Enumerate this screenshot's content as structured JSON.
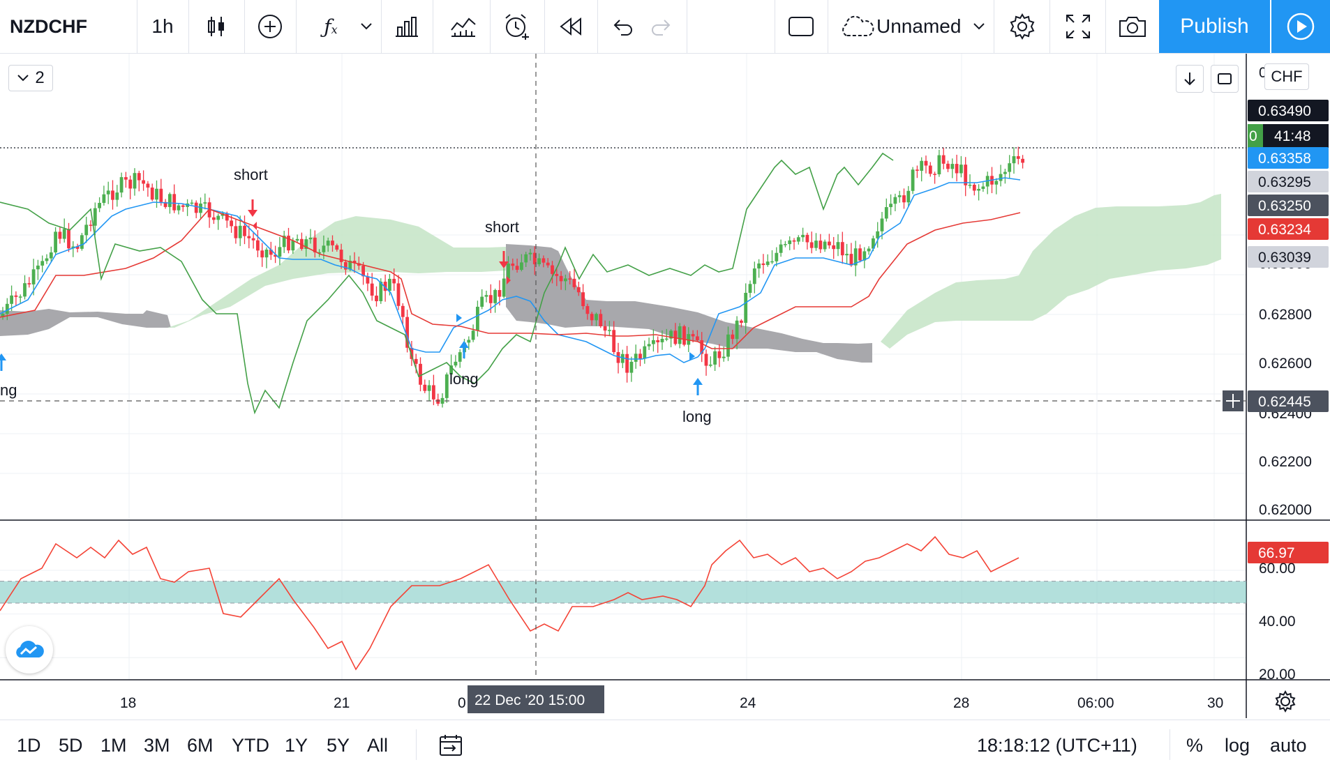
{
  "toolbar": {
    "symbol": "NZDCHF",
    "interval": "1h",
    "layout_name": "Unnamed",
    "publish_label": "Publish"
  },
  "legend": {
    "collapsed_count": "2"
  },
  "currency": "CHF",
  "price_labels": {
    "p1": "0.63490",
    "p2_prefix": "0",
    "countdown": "41:48",
    "p3": "0.63358",
    "p4": "0.63295",
    "p5": "0.63250",
    "p6": "0.63234",
    "p7": "0.63039",
    "crosshair": "0.62445",
    "osc_value": "66.97"
  },
  "price_axis_ticks": [
    "0.62800",
    "0.62600",
    "0.62400",
    "0.62200",
    "0.62000"
  ],
  "osc_axis_ticks": [
    "60.00",
    "40.00",
    "20.00"
  ],
  "time_axis_ticks": [
    "18",
    "21",
    "0",
    "24",
    "28",
    "06:00",
    "30"
  ],
  "crosshair_time": "22 Dec '20   15:00",
  "annotations": {
    "short_1": "short",
    "short_2": "short",
    "long_0": "ng",
    "long_1": "long",
    "long_2": "long"
  },
  "ranges": [
    "1D",
    "5D",
    "1M",
    "3M",
    "6M",
    "YTD",
    "1Y",
    "5Y",
    "All"
  ],
  "clock": "18:18:12 (UTC+11)",
  "scale_options": [
    "%",
    "log",
    "auto"
  ],
  "colors": {
    "up": "#26a69a",
    "bull_candle": "#4caf50",
    "bear_candle": "#f23645",
    "tenkan": "#2196f3",
    "kijun": "#e53935",
    "chikou": "#43a047",
    "cloud_bull": "#c8e6c9",
    "cloud_bear": "#9e9ea3",
    "rsi_line": "#f44336",
    "rsi_band": "#80cbc4",
    "accent": "#2196f3"
  }
}
